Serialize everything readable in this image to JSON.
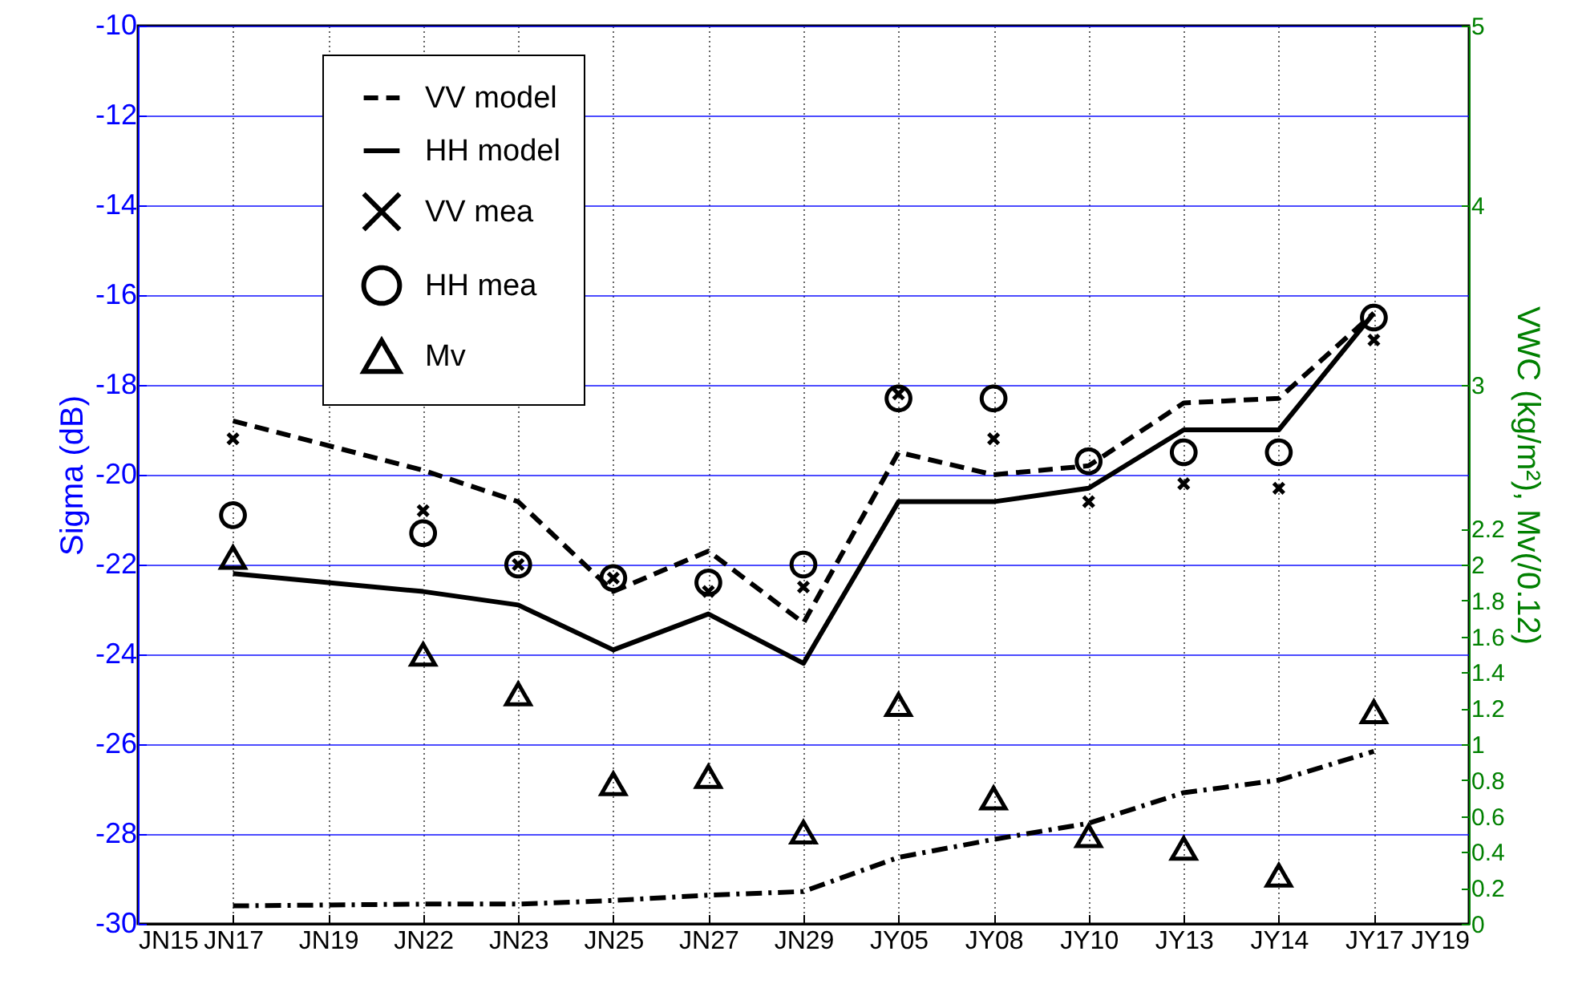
{
  "chart_data": {
    "type": "line",
    "ylabel": "Sigma (dB)",
    "y2label": "VWC (kg/m²), Mv(/0.12)",
    "categories": [
      "JN15",
      "JN17",
      "JN19",
      "JN22",
      "JN23",
      "JN25",
      "JN27",
      "JN29",
      "JY05",
      "JY08",
      "JY10",
      "JY13",
      "JY14",
      "JY17",
      "JY19"
    ],
    "series": [
      {
        "name": "VV model",
        "line_style": "dashed",
        "marker": "none",
        "color": "#000000",
        "values": [
          null,
          -18.8,
          null,
          -19.9,
          -20.6,
          -22.6,
          -21.7,
          -23.3,
          -19.5,
          -20.0,
          -19.8,
          -18.4,
          -18.3,
          -16.4,
          null
        ]
      },
      {
        "name": "HH model",
        "line_style": "solid",
        "marker": "none",
        "color": "#000000",
        "values": [
          null,
          -22.2,
          null,
          -22.6,
          -22.9,
          -23.9,
          -23.1,
          -24.2,
          -20.6,
          -20.6,
          -20.3,
          -19.0,
          -19.0,
          -16.4,
          null
        ]
      },
      {
        "name": "VV mea",
        "type": "scatter",
        "marker": "cross",
        "color": "#000000",
        "values": [
          null,
          -19.2,
          null,
          -20.8,
          -22.0,
          -22.3,
          -22.6,
          -22.5,
          -18.2,
          -19.2,
          -20.6,
          -20.2,
          -20.3,
          -17.0,
          null
        ]
      },
      {
        "name": "HH mea",
        "type": "scatter",
        "marker": "circle",
        "color": "#000000",
        "values": [
          null,
          -20.9,
          null,
          -21.3,
          -22.0,
          -22.3,
          -22.4,
          -22.0,
          -18.3,
          -18.3,
          -19.7,
          -19.5,
          -19.5,
          -16.5,
          null
        ]
      },
      {
        "name": "Mv",
        "type": "scatter",
        "marker": "triangle",
        "axis": "y2",
        "color": "#000000",
        "values": [
          null,
          2.04,
          null,
          1.5,
          1.28,
          0.78,
          0.82,
          0.51,
          1.22,
          0.7,
          0.49,
          0.42,
          0.27,
          1.18,
          null
        ]
      },
      {
        "line_style": "dashdot",
        "marker": "none",
        "axis": "y2",
        "color": "#000000",
        "values": [
          null,
          0.1,
          null,
          0.11,
          0.11,
          0.13,
          0.16,
          0.18,
          0.37,
          0.47,
          0.56,
          0.73,
          0.8,
          0.96,
          null
        ]
      }
    ],
    "ylim": [
      -30,
      -10
    ],
    "yticks": [
      -30,
      -28,
      -26,
      -24,
      -22,
      -20,
      -18,
      -16,
      -14,
      -12,
      -10
    ],
    "y2lim": [
      0,
      5
    ],
    "y2ticks": [
      0,
      0.2,
      0.4,
      0.6,
      0.8,
      1,
      1.2,
      1.4,
      1.6,
      1.8,
      2,
      2.2,
      3,
      4,
      5
    ],
    "grid": true,
    "legend": "top left"
  }
}
